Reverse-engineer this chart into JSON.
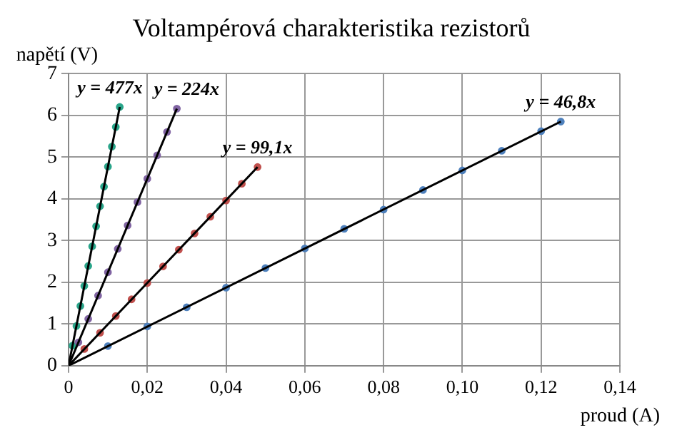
{
  "chart_data": {
    "type": "scatter",
    "title": "Voltampérová charakteristika rezistorů",
    "xlabel": "proud (A)",
    "ylabel": "napětí (V)",
    "xlim": [
      0,
      0.14
    ],
    "xticks": [
      0,
      {
        "value": 0.02,
        "label": "0,02"
      },
      {
        "value": 0.04,
        "label": "0,04"
      },
      {
        "value": 0.06,
        "label": "0,06"
      },
      {
        "value": 0.08,
        "label": "0,08"
      },
      {
        "value": 0.1,
        "label": "0,10"
      },
      {
        "value": 0.12,
        "label": "0,12"
      },
      {
        "value": 0.14,
        "label": "0,14"
      }
    ],
    "ylim": [
      0,
      7
    ],
    "yticks": [
      0,
      1,
      2,
      3,
      4,
      5,
      6,
      7
    ],
    "grid": true,
    "legend": false,
    "marker": "circle",
    "series": [
      {
        "type": "scatter",
        "color": "#4f81bd",
        "x": [
          0.01,
          0.02,
          0.03,
          0.04,
          0.05,
          0.06,
          0.07,
          0.08,
          0.09,
          0.1,
          0.11,
          0.12,
          0.125
        ],
        "values": [
          0.47,
          0.94,
          1.4,
          1.87,
          2.34,
          2.81,
          3.28,
          3.74,
          4.21,
          4.68,
          5.15,
          5.62,
          5.85
        ]
      },
      {
        "type": "scatter",
        "color": "#c0504d",
        "x": [
          0.004,
          0.008,
          0.012,
          0.016,
          0.02,
          0.024,
          0.028,
          0.032,
          0.036,
          0.04,
          0.044,
          0.048
        ],
        "values": [
          0.4,
          0.79,
          1.19,
          1.59,
          1.98,
          2.38,
          2.78,
          3.17,
          3.57,
          3.96,
          4.36,
          4.76
        ]
      },
      {
        "type": "scatter",
        "color": "#8064a2",
        "x": [
          0.0025,
          0.005,
          0.0075,
          0.01,
          0.0125,
          0.015,
          0.0175,
          0.02,
          0.0225,
          0.025,
          0.0275
        ],
        "values": [
          0.56,
          1.12,
          1.68,
          2.24,
          2.8,
          3.36,
          3.92,
          4.48,
          5.04,
          5.6,
          6.16
        ]
      },
      {
        "type": "scatter",
        "color": "#2aa58a",
        "x": [
          0.001,
          0.002,
          0.003,
          0.004,
          0.005,
          0.006,
          0.007,
          0.008,
          0.009,
          0.01,
          0.011,
          0.012,
          0.013
        ],
        "values": [
          0.48,
          0.95,
          1.43,
          1.91,
          2.39,
          2.86,
          3.34,
          3.82,
          4.29,
          4.77,
          5.25,
          5.72,
          6.2
        ]
      },
      {
        "type": "line",
        "color": "#000000",
        "marker": "none",
        "x": [
          0,
          0.125
        ],
        "values": [
          0,
          5.85
        ]
      },
      {
        "type": "line",
        "color": "#000000",
        "marker": "none",
        "x": [
          0,
          0.048
        ],
        "values": [
          0,
          4.76
        ]
      },
      {
        "type": "line",
        "color": "#000000",
        "marker": "none",
        "x": [
          0,
          0.0275
        ],
        "values": [
          0,
          6.16
        ]
      },
      {
        "type": "line",
        "color": "#000000",
        "marker": "none",
        "x": [
          0,
          0.013
        ],
        "values": [
          0,
          6.2
        ]
      }
    ],
    "annotations": [
      {
        "text": "y = 46,8x",
        "x": 0.125,
        "y": 5.85
      },
      {
        "text": "y = 99,1x",
        "x": 0.048,
        "y": 4.76
      },
      {
        "text": "y = 224x",
        "x": 0.0275,
        "y": 6.16
      },
      {
        "text": "y = 477x",
        "x": 0.013,
        "y": 6.2
      }
    ]
  }
}
